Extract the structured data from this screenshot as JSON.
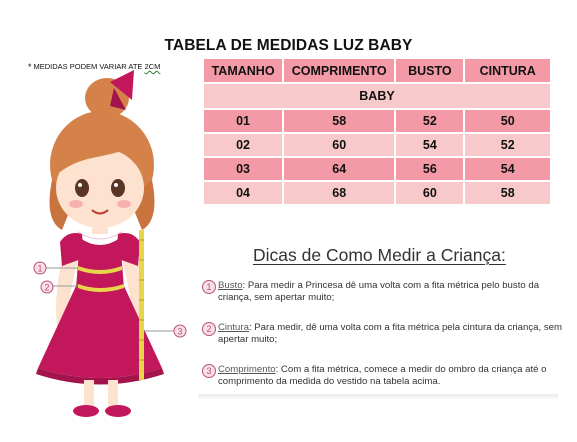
{
  "title": "TABELA DE MEDIDAS LUZ BABY",
  "note": {
    "asterisk": "*",
    "text": "MEDIDAS PODEM VARIAR ATE ",
    "cm": "2CM"
  },
  "table": {
    "headers": [
      "TAMANHO",
      "COMPRIMENTO",
      "BUSTO",
      "CINTURA"
    ],
    "group": "BABY",
    "rows": [
      [
        "01",
        "58",
        "52",
        "50"
      ],
      [
        "02",
        "60",
        "54",
        "52"
      ],
      [
        "03",
        "64",
        "56",
        "54"
      ],
      [
        "04",
        "68",
        "60",
        "58"
      ]
    ]
  },
  "tips": {
    "title": "Dicas de Como Medir a Criança:",
    "items": [
      {
        "num": "1",
        "term": "Busto",
        "text": ": Para medir a Princesa dê uma volta com a fita métrica pelo busto da criança, sem apertar muito;"
      },
      {
        "num": "2",
        "term": "Cintura",
        "text": ": Para medir, dê uma volta com a fita métrica pela cintura da criança, sem apertar muito;"
      },
      {
        "num": "3",
        "term": "Comprimento",
        "text": ": Com a fita métrica, comece a medir do ombro da criança até o comprimento da medida do vestido na tabela acima."
      }
    ]
  },
  "illustration": {
    "markers": [
      "1",
      "2",
      "3"
    ],
    "colors": {
      "dress": "#c2185b",
      "hair": "#d5824a",
      "skin": "#fde3cf",
      "tape": "#e8d64a",
      "table_dark": "#f39aa6",
      "table_light": "#f8c9ca"
    }
  }
}
